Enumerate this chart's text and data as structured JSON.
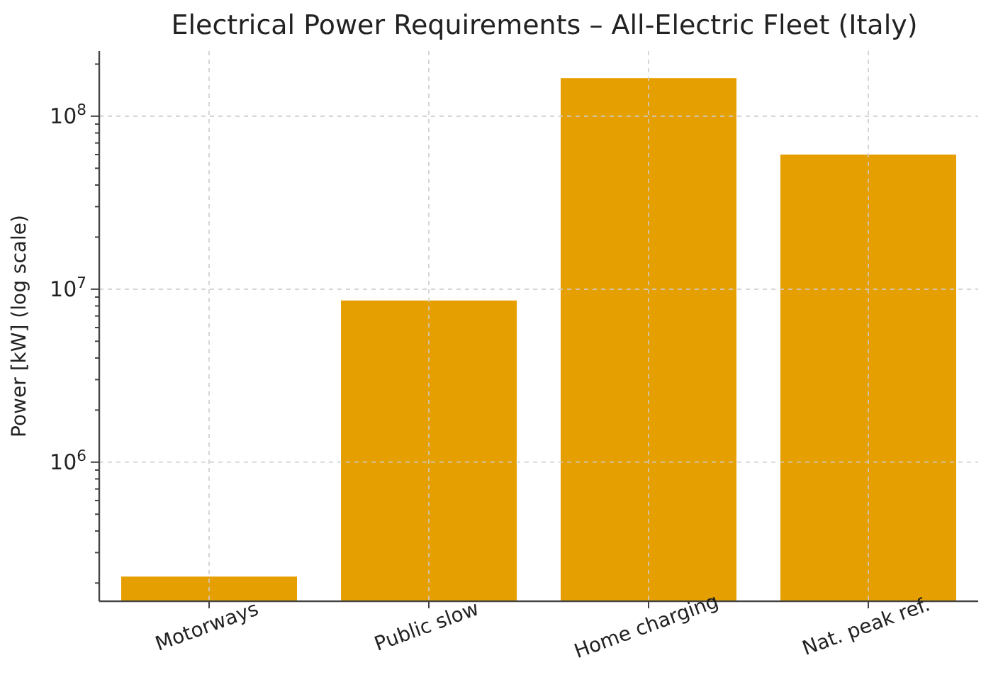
{
  "chart_data": {
    "type": "bar",
    "title": "Electrical Power Requirements – All-Electric Fleet (Italy)",
    "ylabel": "Power [kW] (log scale)",
    "categories": [
      "Motorways",
      "Public slow",
      "Home charging",
      "Nat. peak ref."
    ],
    "values": [
      218000,
      8600000,
      166000000,
      60000000
    ],
    "color": "#e69f00",
    "log": true,
    "grid": true,
    "ylim": [
      157000,
      238000000
    ],
    "yticks": [
      {
        "value": 200000,
        "label": null
      },
      {
        "value": 300000,
        "label": null
      },
      {
        "value": 400000,
        "label": null
      },
      {
        "value": 500000,
        "label": null
      },
      {
        "value": 600000,
        "label": null
      },
      {
        "value": 700000,
        "label": null
      },
      {
        "value": 800000,
        "label": null
      },
      {
        "value": 900000,
        "label": null
      },
      {
        "value": 1000000,
        "label": "10$^{6}$"
      },
      {
        "value": 2000000,
        "label": null
      },
      {
        "value": 3000000,
        "label": null
      },
      {
        "value": 4000000,
        "label": null
      },
      {
        "value": 5000000,
        "label": null
      },
      {
        "value": 6000000,
        "label": null
      },
      {
        "value": 7000000,
        "label": null
      },
      {
        "value": 8000000,
        "label": null
      },
      {
        "value": 9000000,
        "label": null
      },
      {
        "value": 10000000,
        "label": "10$^{7}$"
      },
      {
        "value": 20000000,
        "label": null
      },
      {
        "value": 30000000,
        "label": null
      },
      {
        "value": 40000000,
        "label": null
      },
      {
        "value": 50000000,
        "label": null
      },
      {
        "value": 60000000,
        "label": null
      },
      {
        "value": 70000000,
        "label": null
      },
      {
        "value": 80000000,
        "label": null
      },
      {
        "value": 90000000,
        "label": null
      },
      {
        "value": 100000000,
        "label": "10$^{8}$"
      },
      {
        "value": 200000000,
        "label": null
      }
    ]
  }
}
